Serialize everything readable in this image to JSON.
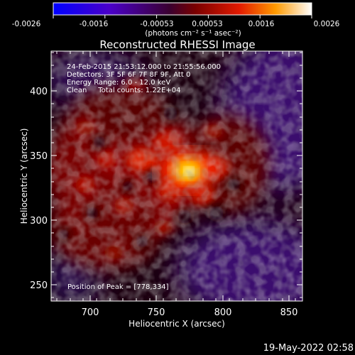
{
  "colorbar": {
    "tick_labels": [
      "-0.0026",
      "-0.0016",
      "-0.00053",
      "0.00053",
      "0.0016",
      "0.0026"
    ],
    "unit_label": "(photons cm⁻² s⁻¹ asec⁻²)"
  },
  "title": "Reconstructed RHESSI Image",
  "info": {
    "line1": "24-Feb-2015 21:53:12.000 to 21:55:56.000",
    "line2": "Detectors: 3F 5F 6F 7F 8F 9F, Att 0",
    "line3": "Energy Range: 6.0 - 12.0 keV",
    "line4": "Clean     Total counts: 1.22E+04"
  },
  "peak_label": "Position of Peak = [778,334]",
  "axes": {
    "xlabel": "Heliocentric X (arcsec)",
    "ylabel": "Heliocentric Y (arcsec)",
    "xticks": [
      "700",
      "750",
      "800",
      "850"
    ],
    "yticks": [
      "250",
      "300",
      "350",
      "400"
    ],
    "xlim": [
      671,
      862
    ],
    "ylim": [
      237,
      428
    ]
  },
  "footer_timestamp": "19-May-2022 02:58",
  "image_data": {
    "peak_position": [
      778,
      334
    ],
    "colormap": "blue-purple-red-yellow-white"
  }
}
